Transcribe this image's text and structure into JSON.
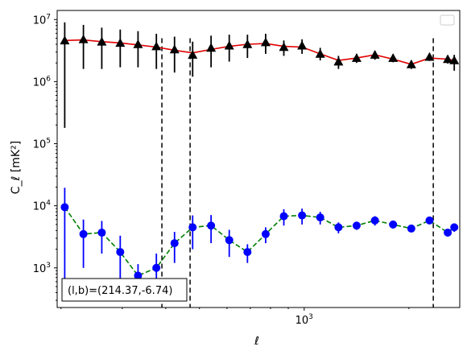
{
  "chart_data": {
    "type": "scatter",
    "xlabel": "ℓ",
    "ylabel": "C_ℓ  [mK²]",
    "x_scale": "log",
    "y_scale": "log",
    "xlim": [
      195,
      2800
    ],
    "ylim": [
      230,
      14000000
    ],
    "x_tick_labels": [
      {
        "value": 1000,
        "base": "10",
        "exp": "3"
      }
    ],
    "y_tick_labels": [
      {
        "value": 1000,
        "base": "10",
        "exp": "3"
      },
      {
        "value": 10000,
        "base": "10",
        "exp": "4"
      },
      {
        "value": 100000,
        "base": "10",
        "exp": "5"
      },
      {
        "value": 1000000,
        "base": "10",
        "exp": "6"
      },
      {
        "value": 10000000,
        "base": "10",
        "exp": "7"
      }
    ],
    "legend": {
      "position": "top-right",
      "entries": []
    },
    "grid": false,
    "colors": {
      "upper_markers": "#000000",
      "upper_curve": "#e00000",
      "lower_markers": "#0000ff",
      "lower_curve": "#008000"
    },
    "vlines": [
      390,
      470,
      2350
    ],
    "annotation": "(l,b)=(214.37,-6.74)",
    "upper_series": {
      "marker": "triangle",
      "x": [
        205,
        232,
        262,
        296,
        333,
        376,
        424,
        478,
        540,
        609,
        687,
        775,
        874,
        986,
        1112,
        1255,
        1415,
        1597,
        1801,
        2032,
        2292,
        2586,
        2700
      ],
      "y": [
        4600000,
        4800000,
        4400000,
        4200000,
        4000000,
        3700000,
        3300000,
        2700000,
        3500000,
        3800000,
        4000000,
        4300000,
        3600000,
        3800000,
        2800000,
        2100000,
        2400000,
        2700000,
        2400000,
        1900000,
        2500000,
        2300000,
        2200000
      ],
      "err_low": [
        4420000,
        3200000,
        2800000,
        2500000,
        2300000,
        2100000,
        1900000,
        1500000,
        1800000,
        1700000,
        1600000,
        1500000,
        1000000,
        1000000,
        600000,
        500000,
        400000,
        450000,
        350000,
        300000,
        350000,
        350000,
        700000
      ],
      "err_high": [
        4400000,
        3400000,
        3000000,
        2700000,
        2500000,
        2200000,
        2000000,
        1700000,
        2000000,
        1900000,
        1700000,
        1600000,
        1000000,
        1000000,
        700000,
        500000,
        400000,
        450000,
        350000,
        300000,
        350000,
        350000,
        500000
      ]
    },
    "upper_curve": {
      "x": [
        205,
        232,
        262,
        296,
        333,
        376,
        424,
        478,
        540,
        609,
        687,
        775,
        874,
        986,
        1112,
        1255,
        1415,
        1597,
        1801,
        2032,
        2292,
        2586,
        2700
      ],
      "y": [
        4600000,
        4700000,
        4400000,
        4200000,
        3900000,
        3600000,
        3200000,
        2900000,
        3300000,
        3700000,
        4000000,
        4100000,
        3700000,
        3600000,
        2800000,
        2200000,
        2400000,
        2700000,
        2300000,
        1900000,
        2400000,
        2300000,
        2200000
      ]
    },
    "lower_series": {
      "marker": "circle",
      "x": [
        205,
        232,
        262,
        296,
        333,
        376,
        424,
        478,
        540,
        609,
        687,
        775,
        874,
        986,
        1112,
        1255,
        1415,
        1597,
        1801,
        2032,
        2292,
        2586,
        2700
      ],
      "y": [
        9500,
        3500,
        3700,
        1800,
        750,
        1000,
        2500,
        4500,
        4800,
        2800,
        1800,
        3500,
        6800,
        7000,
        6500,
        4500,
        4800,
        5800,
        5000,
        4300,
        5800,
        3700,
        4500
      ],
      "err_low": [
        9000,
        2500,
        2000,
        1300,
        400,
        700,
        1300,
        2500,
        2300,
        1300,
        600,
        1000,
        2000,
        2000,
        1500,
        900,
        700,
        1000,
        700,
        500,
        600,
        400,
        700
      ],
      "err_high": [
        10000,
        2500,
        2000,
        1500,
        400,
        700,
        1300,
        2500,
        2300,
        1300,
        600,
        1000,
        2000,
        2000,
        1500,
        900,
        700,
        1000,
        700,
        500,
        600,
        400,
        700
      ]
    },
    "lower_curve": {
      "x": [
        205,
        232,
        262,
        296,
        333,
        376,
        424,
        478,
        540,
        609,
        687,
        775,
        874,
        986,
        1112,
        1255,
        1415,
        1597,
        1801,
        2032,
        2292,
        2586,
        2700
      ],
      "y": [
        9500,
        3500,
        3700,
        1800,
        750,
        1000,
        2500,
        4500,
        4800,
        2800,
        1800,
        3500,
        6800,
        7000,
        6500,
        4500,
        4800,
        5800,
        5000,
        4300,
        5800,
        3700,
        4500
      ]
    }
  }
}
